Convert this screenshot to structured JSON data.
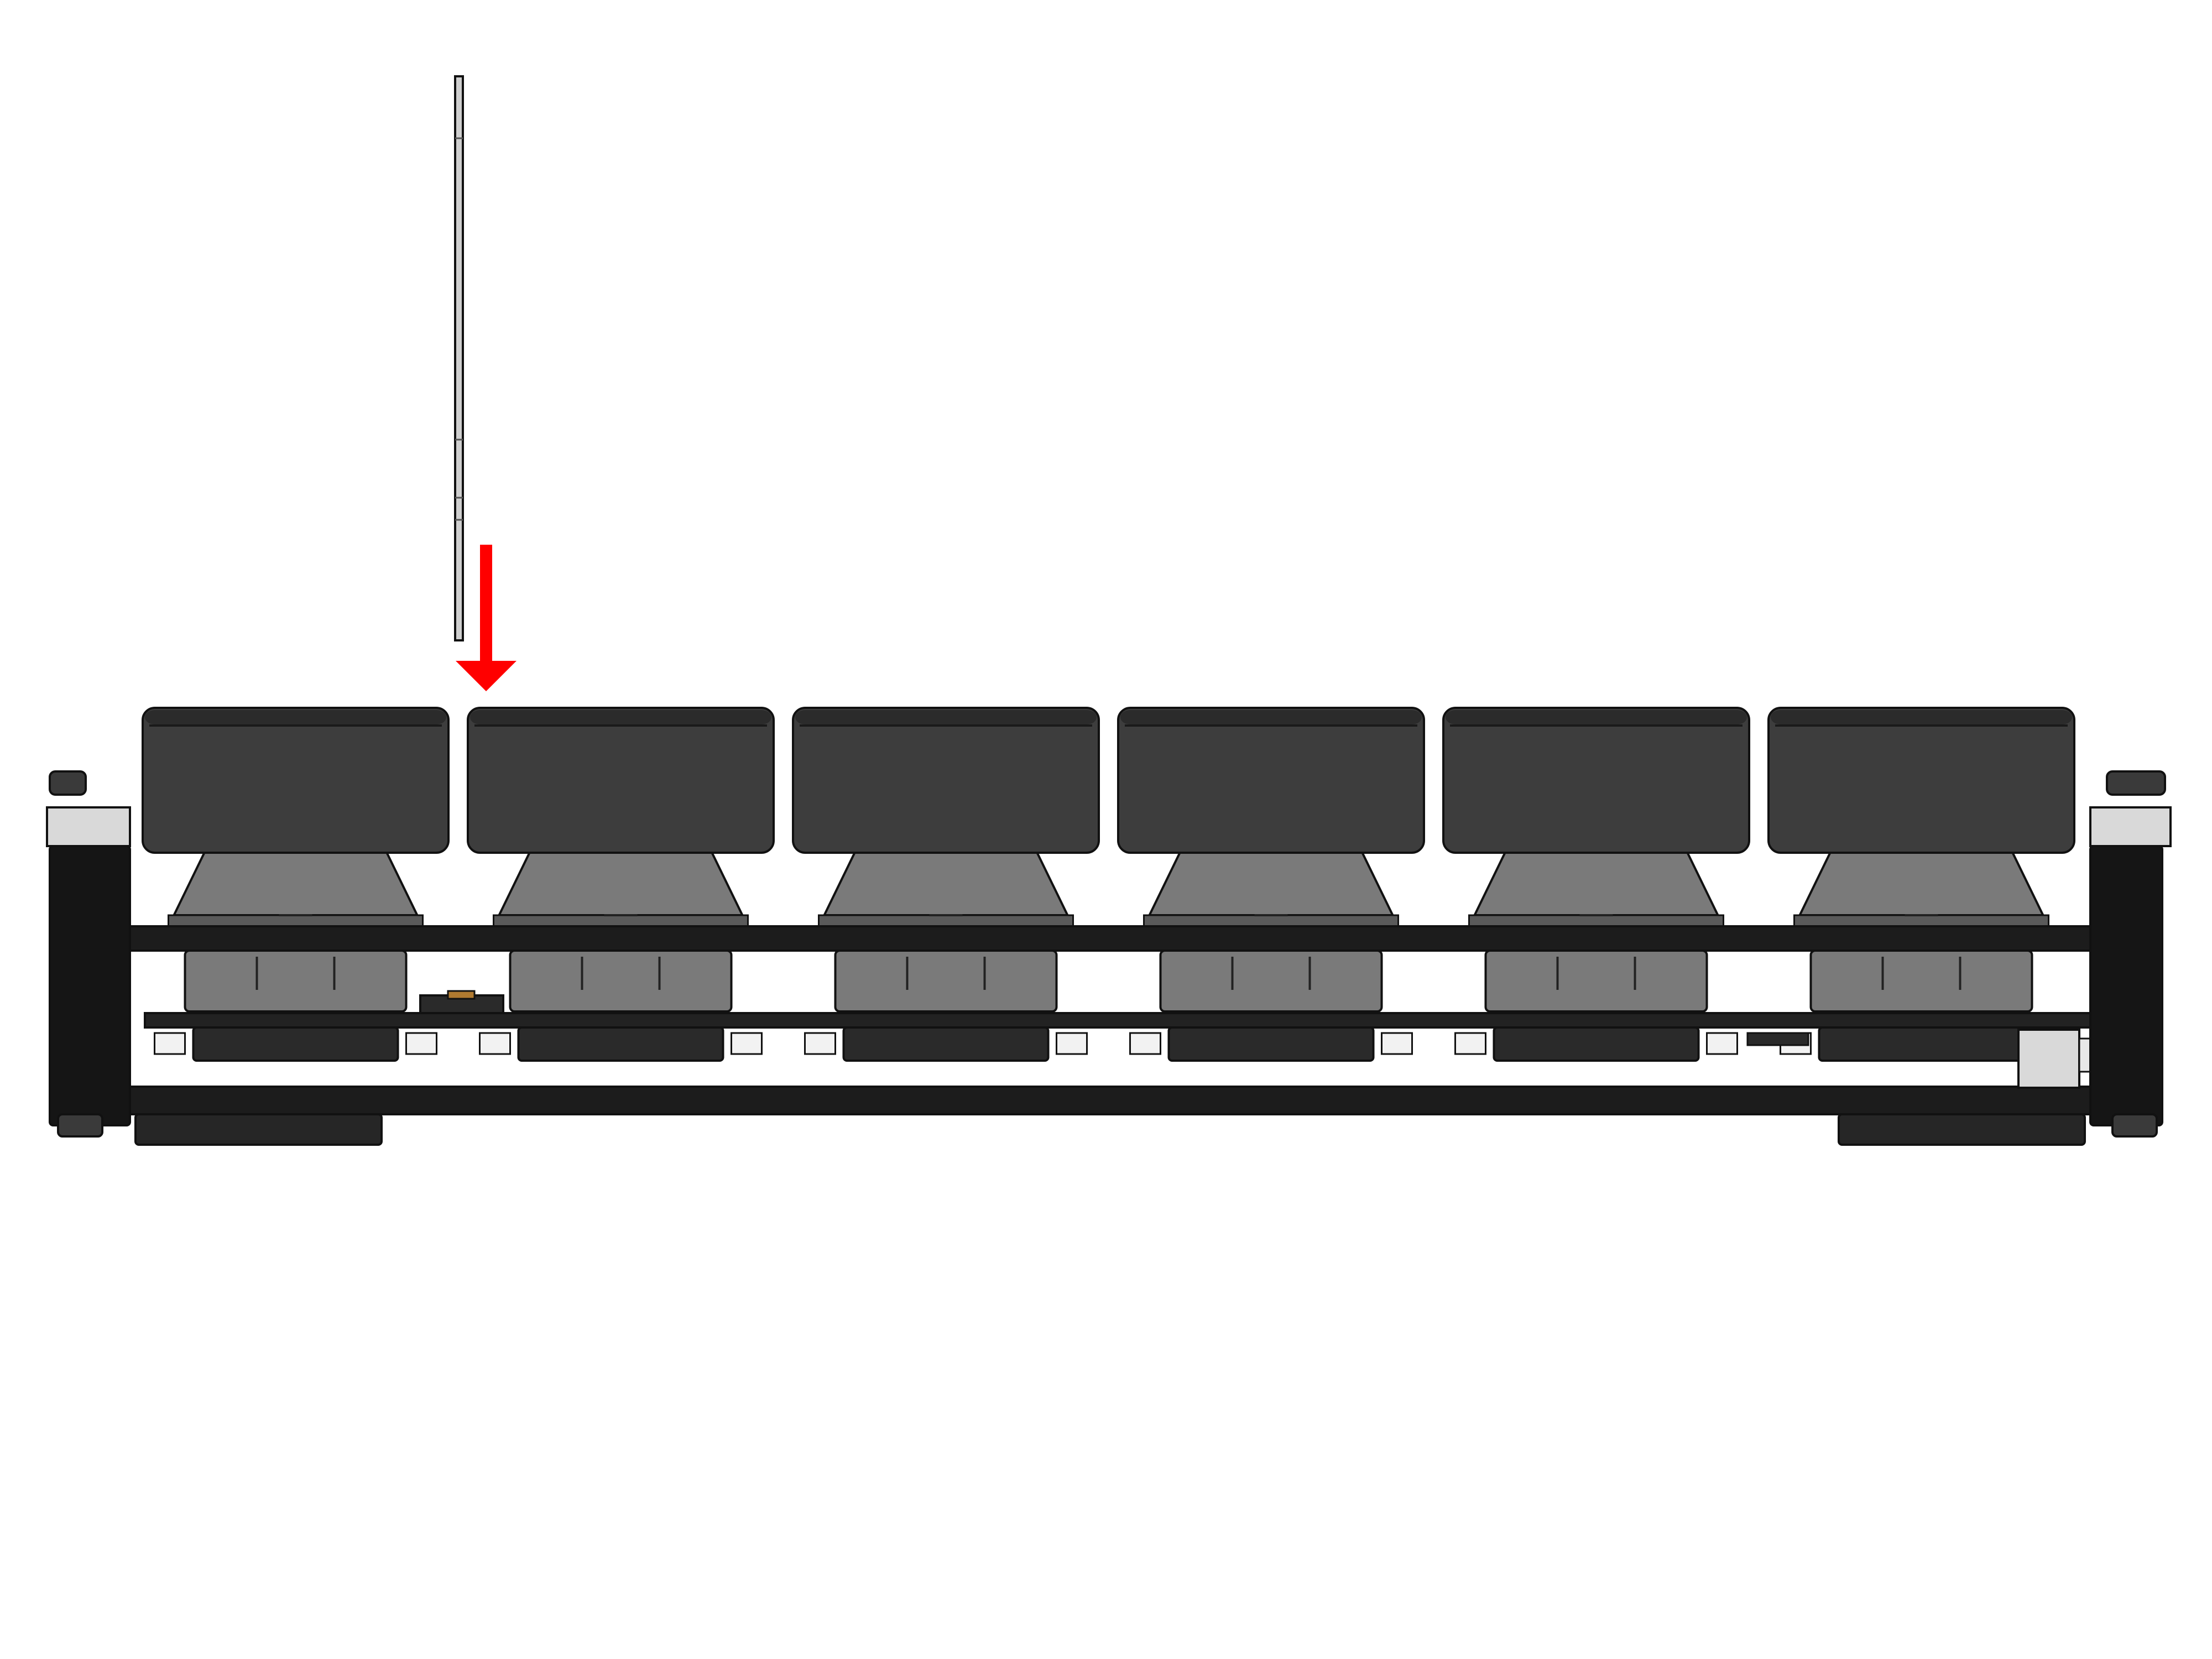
{
  "view": "side-elevation",
  "insert_direction": "down",
  "keycap_count": 6,
  "switch_count": 6,
  "standoff_count": 2,
  "foot_count": 2,
  "colors": {
    "background": "#ffffff",
    "outline": "#111111",
    "keycap": "#3d3d3d",
    "keycap_top": "#2b2b2b",
    "switch_housing": "#7a7a7a",
    "switch_housing_dark": "#5a5a5a",
    "plate": "#1c1c1c",
    "pcb": "#222222",
    "hotswap_socket": "#2a2a2a",
    "standoff": "#151515",
    "standoff_cap": "#3a3a3a",
    "standoff_ring": "#d9d9d9",
    "foot": "#262626",
    "shim_fill": "#cfcfcf",
    "arrow": "#ff0000"
  },
  "icons": {
    "arrow": "arrow-down-icon",
    "shim": "shim-plate-icon",
    "keycap": "keycap-icon",
    "switch": "switch-icon",
    "standoff": "standoff-icon",
    "foot": "rubber-foot-icon"
  }
}
